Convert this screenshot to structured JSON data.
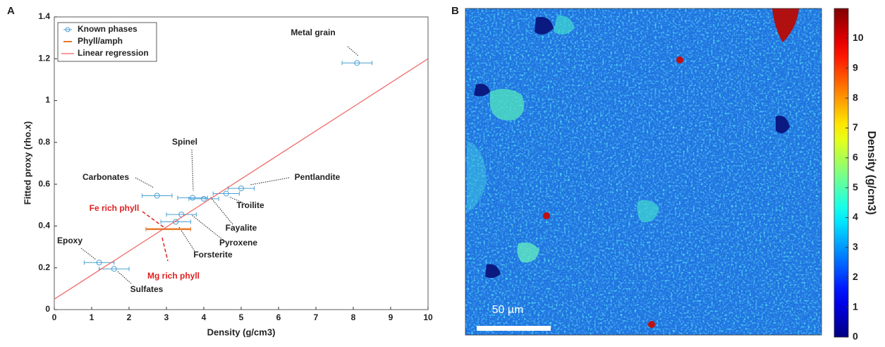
{
  "chart_data": [
    {
      "type": "scatter",
      "panel_label": "A",
      "xlabel": "Density (g/cm3)",
      "ylabel": "Fitted proxy (rho.x)",
      "xlim": [
        0,
        10
      ],
      "ylim": [
        0,
        1.4
      ],
      "xticks": [
        0,
        1,
        2,
        3,
        4,
        5,
        6,
        7,
        8,
        9,
        10
      ],
      "yticks": [
        0,
        0.2,
        0.4,
        0.6,
        0.8,
        1,
        1.2,
        1.4
      ],
      "legend": "upper left",
      "series": [
        {
          "name": "Known phases",
          "color": "#4a9fd4",
          "labels": [
            "Metal grain",
            "Pentlandite",
            "Troilite",
            "Spinel",
            "Fayalite",
            "Carbonates",
            "Pyroxene",
            "Forsterite",
            "Epoxy",
            "Sulfates"
          ],
          "x": [
            8.1,
            5.0,
            4.6,
            3.7,
            4.0,
            2.75,
            3.4,
            3.25,
            1.2,
            1.6
          ],
          "values": [
            1.18,
            0.58,
            0.555,
            0.535,
            0.53,
            0.545,
            0.455,
            0.42,
            0.225,
            0.195
          ],
          "xerr": [
            0.4,
            0.35,
            0.35,
            0.4,
            0.4,
            0.4,
            0.4,
            0.4,
            0.4,
            0.4
          ]
        },
        {
          "name": "Phyll/amph",
          "color": "#e8782a",
          "x": [
            3.05
          ],
          "values": [
            0.385
          ],
          "xerr": [
            0.6
          ]
        },
        {
          "name": "Linear regression",
          "type": "line",
          "color": "#f06060",
          "x": [
            0,
            10
          ],
          "values": [
            0.05,
            1.2
          ]
        }
      ],
      "annotations": [
        {
          "text": "Fe rich phyll",
          "color": "#e02020"
        },
        {
          "text": "Mg rich phyll",
          "color": "#e02020"
        }
      ]
    },
    {
      "type": "image",
      "panel_label": "B",
      "scale_bar": "50 µm",
      "colorbar": {
        "label": "Density (g/cm3)",
        "colormap": "jet",
        "lim": [
          0,
          11
        ],
        "ticks": [
          0,
          1,
          2,
          3,
          4,
          5,
          6,
          7,
          8,
          9,
          10
        ]
      }
    }
  ]
}
